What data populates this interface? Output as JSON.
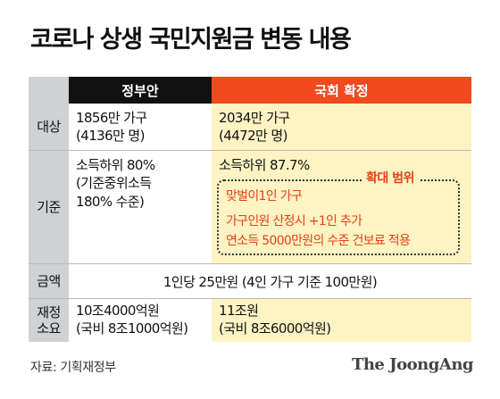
{
  "title": "코로나 상생 국민지원금 변동 내용",
  "header": {
    "gov": "정부안",
    "national_assembly": "국회 확정"
  },
  "rows": {
    "target": {
      "label": "대상",
      "gov_line1": "1856만 가구",
      "gov_line2": "(4136만 명)",
      "nat_line1": "2034만 가구",
      "nat_line2": "(4472만 명)"
    },
    "criteria": {
      "label": "기준",
      "gov_line1": "소득하위 80%",
      "gov_line2": "(기준중위소득",
      "gov_line3": "180% 수준)",
      "nat_line1": "소득하위 87.7%",
      "expand_title": "확대 범위",
      "expand_line1": "맞벌이1인 가구",
      "expand_line2": "가구인원 산정시 +1인 추가",
      "expand_line3": "연소득 5000만원의 수준 건보료 적용"
    },
    "amount": {
      "label": "금액",
      "value": "1인당 25만원 (4인 가구 기준 100만원)"
    },
    "budget": {
      "label_line1": "재정",
      "label_line2": "소요",
      "gov_line1": "10조4000억원",
      "gov_line2": "(국비 8조1000억원)",
      "nat_line1": "11조원",
      "nat_line2": "(국비 8조6000억원)"
    }
  },
  "source": "자료: 기획재정부",
  "brand": "The JoongAng",
  "colors": {
    "label_bg": "#cfd1d3",
    "gov_header_bg": "#111111",
    "nat_header_bg": "#f04a1e",
    "nat_bg": "#fdf3c3",
    "accent": "#e8401a"
  }
}
